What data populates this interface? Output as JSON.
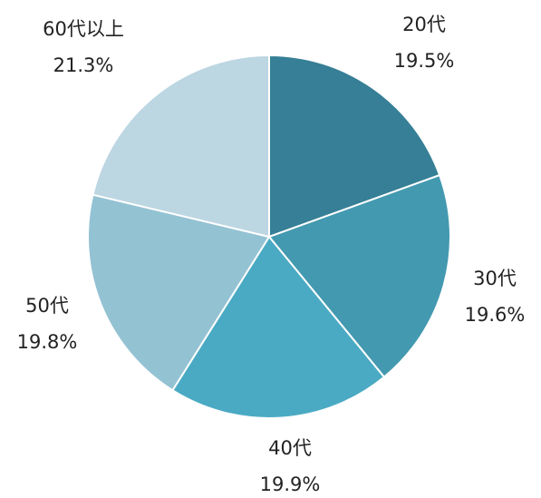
{
  "chart_data": {
    "type": "pie",
    "categories": [
      "20代",
      "30代",
      "40代",
      "50代",
      "60代以上"
    ],
    "values": [
      19.5,
      19.6,
      19.9,
      19.8,
      21.3
    ],
    "value_labels": [
      "19.5%",
      "19.6%",
      "19.9%",
      "19.8%",
      "21.3%"
    ],
    "colors": [
      "#367f96",
      "#4399b0",
      "#4aaac3",
      "#93c2d3",
      "#bcd6e2"
    ]
  }
}
